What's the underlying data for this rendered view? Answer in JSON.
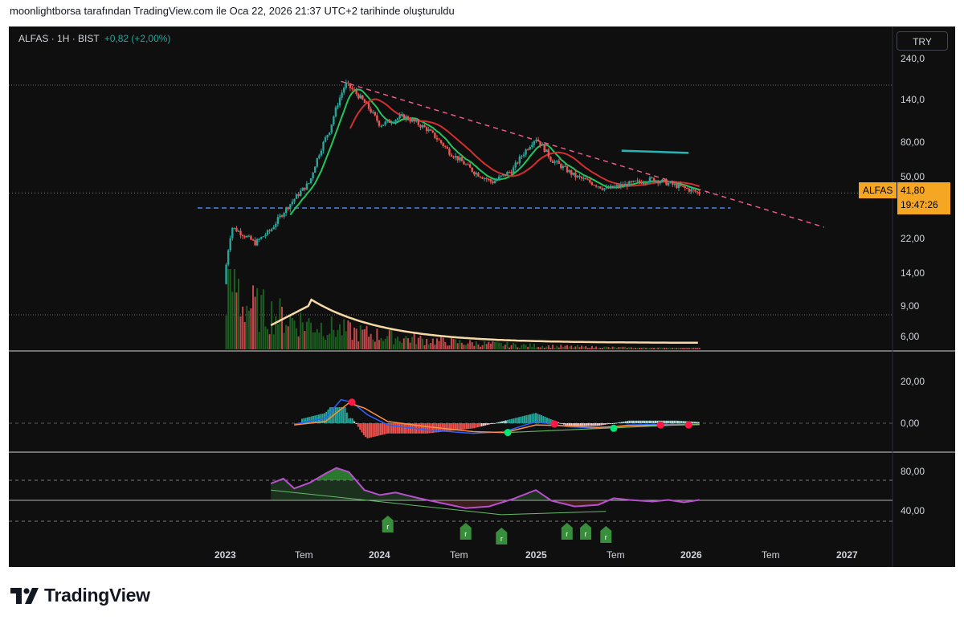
{
  "caption": "moonlightborsa tarafından TradingView.com ile Oca 22, 2026 21:37 UTC+2 tarihinde oluşturuldu",
  "legend": {
    "symbol": "ALFAS · 1H · BIST",
    "change": "+0,82 (+2,00%)"
  },
  "currency_button": "TRY",
  "price_label": {
    "ticker": "ALFAS",
    "price": "41,80",
    "countdown": "19:47:26",
    "color": "#f5a623"
  },
  "brand": "TradingView",
  "colors": {
    "up": "#26a69a",
    "down": "#ef5350",
    "volUp": "#1b5e20",
    "volDown": "#c2474a",
    "volMA": "#f7d9a6",
    "ma1": "#22c55e",
    "ma2": "#d32f2f",
    "trend": "#e85a8a",
    "support": "#4a86e8",
    "cyan": "#25b5b5",
    "macd": "#2962ff",
    "signal": "#ff8f3f",
    "rsi": "#b94fcf"
  },
  "chart_data": [
    {
      "type": "candlestick",
      "title": "ALFAS · 1H · BIST",
      "y_scale": "log",
      "y_ticks": [
        "240,0",
        "140,0",
        "80,00",
        "50,00",
        "22,00",
        "14,00",
        "9,00",
        "6,00"
      ],
      "x_ticks": [
        {
          "label": "2023",
          "year": true
        },
        {
          "label": "Tem",
          "year": false
        },
        {
          "label": "2024",
          "year": true
        },
        {
          "label": "Tem",
          "year": false
        },
        {
          "label": "2025",
          "year": true
        },
        {
          "label": "Tem",
          "year": false
        },
        {
          "label": "2026",
          "year": true
        },
        {
          "label": "Tem",
          "year": false
        },
        {
          "label": "2027",
          "year": true
        }
      ],
      "price_path": [
        [
          2023.0,
          13
        ],
        [
          2023.05,
          27
        ],
        [
          2023.2,
          22
        ],
        [
          2023.3,
          26
        ],
        [
          2023.42,
          36
        ],
        [
          2023.55,
          48
        ],
        [
          2023.68,
          95
        ],
        [
          2023.78,
          170
        ],
        [
          2023.88,
          140
        ],
        [
          2024.0,
          100
        ],
        [
          2024.15,
          112
        ],
        [
          2024.3,
          95
        ],
        [
          2024.45,
          70
        ],
        [
          2024.6,
          55
        ],
        [
          2024.72,
          48
        ],
        [
          2024.85,
          56
        ],
        [
          2025.0,
          85
        ],
        [
          2025.1,
          64
        ],
        [
          2025.25,
          52
        ],
        [
          2025.45,
          44
        ],
        [
          2025.55,
          46
        ],
        [
          2025.75,
          50
        ],
        [
          2025.9,
          46
        ],
        [
          2026.05,
          41.8
        ]
      ],
      "last_price": 41.8,
      "support_level": 34.5,
      "trendline": [
        [
          2023.75,
          175
        ],
        [
          2026.85,
          27
        ]
      ],
      "volume_ma_peak_time": 2023.55
    },
    {
      "type": "line",
      "title": "MACD",
      "y_ticks": [
        "20,00",
        "0,00"
      ],
      "series": [
        {
          "values": [
            [
              2023.45,
              -1
            ],
            [
              2023.65,
              6
            ],
            [
              2023.75,
              28
            ],
            [
              2023.82,
              25
            ],
            [
              2023.92,
              10
            ],
            [
              2024.05,
              -2
            ],
            [
              2024.3,
              -8
            ],
            [
              2024.6,
              -12
            ],
            [
              2024.8,
              -10
            ],
            [
              2025.0,
              2
            ],
            [
              2025.2,
              -4
            ],
            [
              2025.4,
              -6
            ],
            [
              2025.6,
              -2
            ],
            [
              2025.9,
              -1
            ],
            [
              2026.05,
              -1
            ]
          ]
        },
        {
          "values": [
            [
              2023.45,
              -2
            ],
            [
              2023.65,
              2
            ],
            [
              2023.8,
              24
            ],
            [
              2023.9,
              18
            ],
            [
              2024.05,
              2
            ],
            [
              2024.3,
              -4
            ],
            [
              2024.6,
              -10
            ],
            [
              2024.8,
              -11
            ],
            [
              2025.0,
              -2
            ],
            [
              2025.2,
              -3
            ],
            [
              2025.4,
              -5
            ],
            [
              2025.6,
              -3
            ],
            [
              2025.9,
              -2
            ],
            [
              2026.05,
              -1.5
            ]
          ]
        }
      ],
      "cross_markers": [
        {
          "time": 2023.82,
          "value": 25,
          "color": "#ff1744"
        },
        {
          "time": 2024.82,
          "value": -11,
          "color": "#00e676"
        },
        {
          "time": 2025.12,
          "value": -1,
          "color": "#ff1744"
        },
        {
          "time": 2025.5,
          "value": -6,
          "color": "#00e676"
        },
        {
          "time": 2025.8,
          "value": -2,
          "color": "#ff1744"
        },
        {
          "time": 2025.98,
          "value": -2,
          "color": "#ff1744"
        }
      ]
    },
    {
      "type": "line",
      "title": "RSI",
      "y_ticks": [
        "80,00",
        "40,00"
      ],
      "series": [
        {
          "values": [
            [
              2023.3,
              66
            ],
            [
              2023.38,
              72
            ],
            [
              2023.45,
              60
            ],
            [
              2023.55,
              67
            ],
            [
              2023.65,
              78
            ],
            [
              2023.72,
              85
            ],
            [
              2023.8,
              80
            ],
            [
              2023.9,
              58
            ],
            [
              2024.0,
              52
            ],
            [
              2024.1,
              55
            ],
            [
              2024.25,
              48
            ],
            [
              2024.4,
              42
            ],
            [
              2024.55,
              36
            ],
            [
              2024.7,
              38
            ],
            [
              2024.85,
              47
            ],
            [
              2025.0,
              58
            ],
            [
              2025.1,
              45
            ],
            [
              2025.25,
              38
            ],
            [
              2025.4,
              40
            ],
            [
              2025.5,
              48
            ],
            [
              2025.6,
              46
            ],
            [
              2025.75,
              44
            ],
            [
              2025.85,
              46
            ],
            [
              2025.95,
              43
            ],
            [
              2026.05,
              46
            ]
          ]
        }
      ],
      "divergence_labels": [
        {
          "time": 2024.05,
          "text": "r"
        },
        {
          "time": 2024.55,
          "text": "r"
        },
        {
          "time": 2024.78,
          "text": "r"
        },
        {
          "time": 2025.2,
          "text": "r"
        },
        {
          "time": 2025.32,
          "text": "r"
        },
        {
          "time": 2025.45,
          "text": "r"
        }
      ]
    }
  ]
}
